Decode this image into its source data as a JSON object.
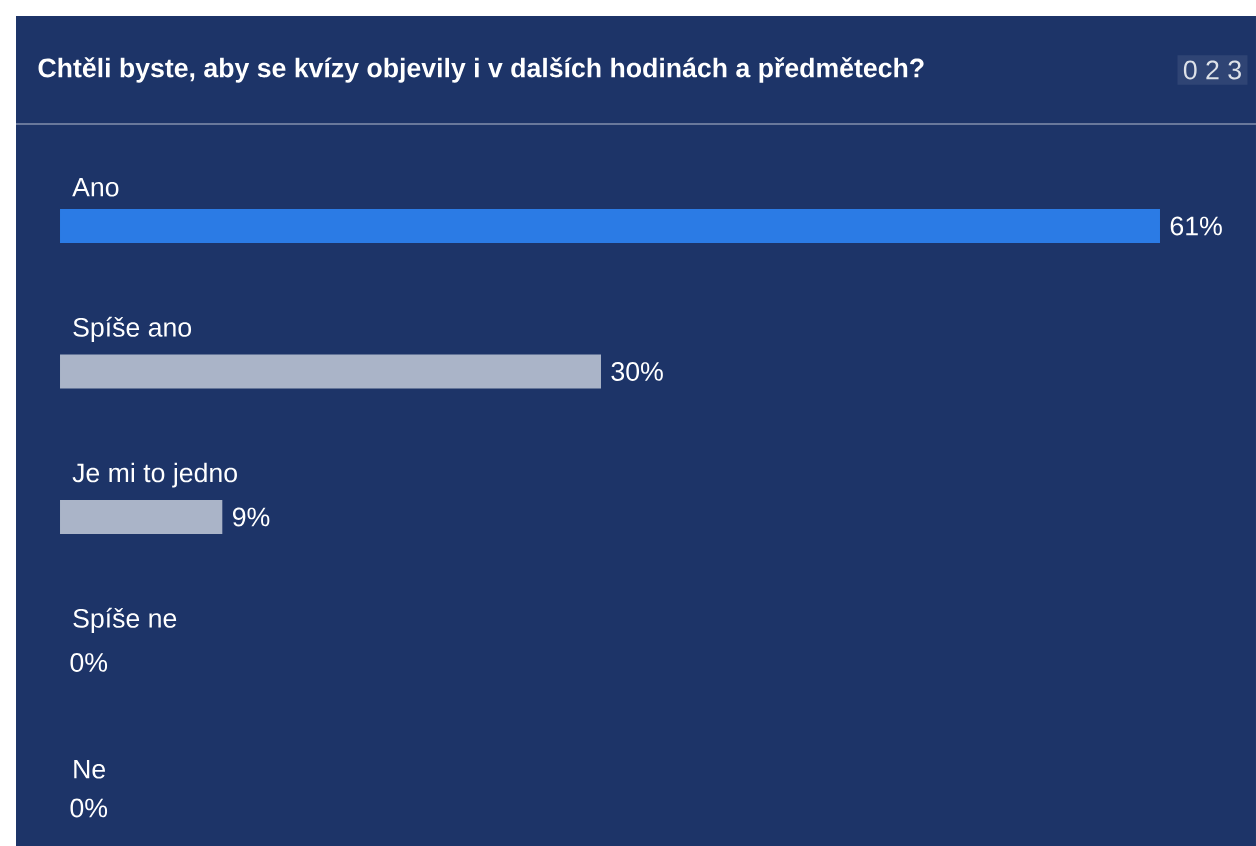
{
  "chart_data": {
    "type": "bar",
    "orientation": "horizontal",
    "title": "Chtěli byste, aby se kvízy objevily i v dalších hodinách a předmětech?",
    "annotations": [
      "0 2 3"
    ],
    "categories": [
      "Ano",
      "Spíše ano",
      "Je mi to jedno",
      "Spíše ne",
      "Ne"
    ],
    "values": [
      61,
      30,
      9,
      0,
      0
    ],
    "colors": [
      "#2b7be5",
      "#aab4c8",
      "#aab4c8",
      "#aab4c8",
      "#aab4c8"
    ],
    "value_labels": [
      "61%",
      "30%",
      "9%",
      "0%",
      "0%"
    ]
  }
}
